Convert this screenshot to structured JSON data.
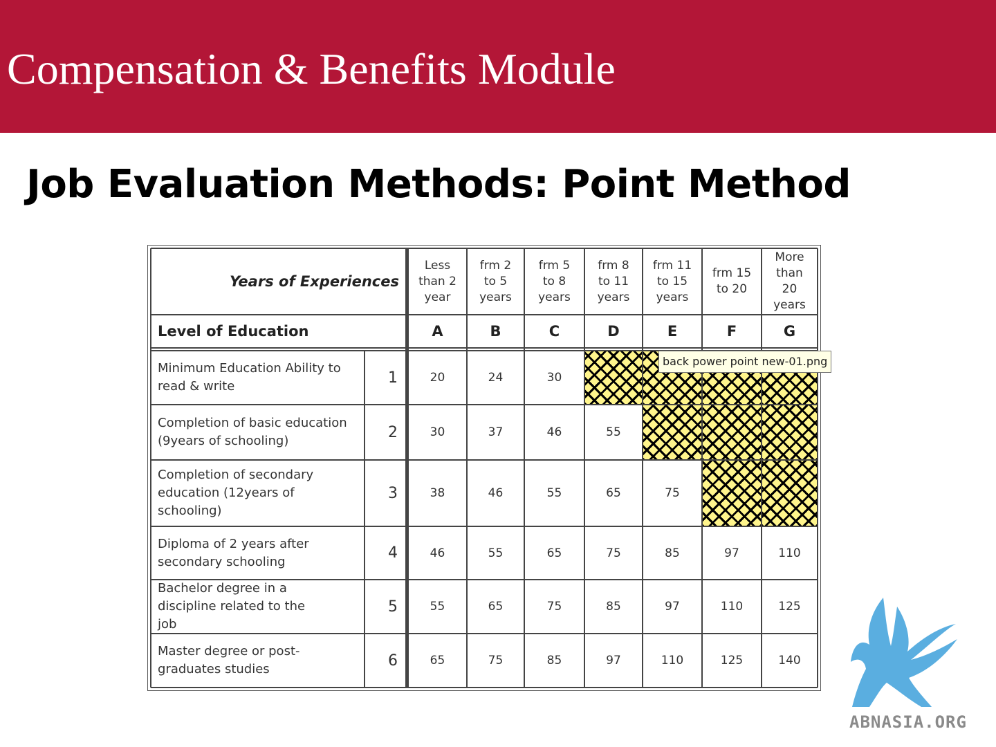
{
  "header": {
    "title": "Compensation & Benefits Module"
  },
  "slide": {
    "title": "Job Evaluation Methods: Point Method"
  },
  "table": {
    "years_header": "Years of Experiences",
    "education_header": "Level of Education",
    "columns": [
      {
        "label": "Less than 2 year",
        "lines": [
          "Less",
          "than 2",
          "year"
        ],
        "letter": "A"
      },
      {
        "label": "frm 2 to 5 years",
        "lines": [
          "frm 2",
          "to 5",
          "years"
        ],
        "letter": "B"
      },
      {
        "label": "frm 5 to 8 years",
        "lines": [
          "frm 5",
          "to 8",
          "years"
        ],
        "letter": "C"
      },
      {
        "label": "frm 8 to 11 years",
        "lines": [
          "frm 8",
          "to 11",
          "years"
        ],
        "letter": "D"
      },
      {
        "label": "frm 11 to 15 years",
        "lines": [
          "frm 11",
          "to 15",
          "years"
        ],
        "letter": "E"
      },
      {
        "label": "frm 15 to 20",
        "lines": [
          "frm 15",
          "to 20"
        ],
        "letter": "F"
      },
      {
        "label": "More than 20 years",
        "lines": [
          "More",
          "than",
          "20",
          "years"
        ],
        "letter": "G"
      }
    ],
    "rows": [
      {
        "label": "Minimum Education Ability to read & write",
        "num": "1",
        "values": [
          "20",
          "24",
          "30",
          "",
          "",
          "",
          ""
        ]
      },
      {
        "label": "Completion of basic education (9years of schooling)",
        "num": "2",
        "values": [
          "30",
          "37",
          "46",
          "55",
          "",
          "",
          ""
        ]
      },
      {
        "label": "Completion of secondary education (12years of schooling)",
        "num": "3",
        "values": [
          "38",
          "46",
          "55",
          "65",
          "75",
          "",
          ""
        ]
      },
      {
        "label": "Diploma of 2 years after secondary schooling",
        "num": "4",
        "values": [
          "46",
          "55",
          "65",
          "75",
          "85",
          "97",
          "110"
        ]
      },
      {
        "label": "Bachelor degree in a discipline related to the job",
        "num": "5",
        "values": [
          "55",
          "65",
          "75",
          "85",
          "97",
          "110",
          "125"
        ]
      },
      {
        "label": "Master degree or post-graduates studies",
        "num": "6",
        "values": [
          "65",
          "75",
          "85",
          "97",
          "110",
          "125",
          "140"
        ]
      }
    ],
    "hatched_fill_color": "#fff58c"
  },
  "tooltip": {
    "text": "back power point new-01.png"
  },
  "logo": {
    "text": "ABNASIA.ORG",
    "icon": "griffin-icon",
    "color": "#5aaee0"
  }
}
